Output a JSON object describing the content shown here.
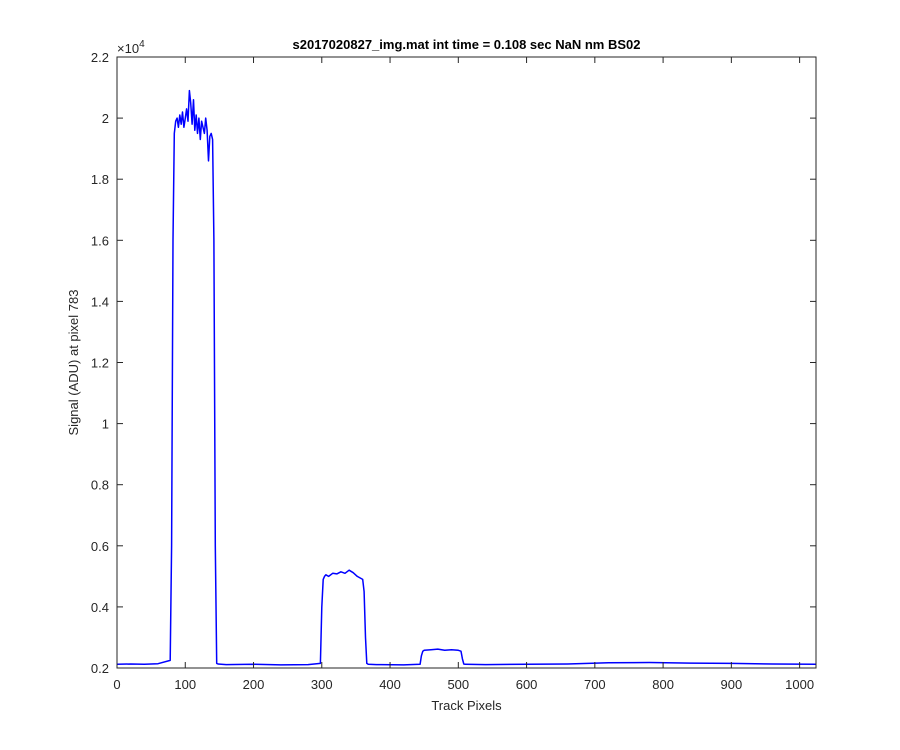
{
  "chart_data": {
    "type": "line",
    "title": "s2017020827_img.mat int time = 0.108 sec  NaN nm BS02",
    "xlabel": "Track Pixels",
    "ylabel": "Signal (ADU) at pixel 783",
    "exponent_label": "×10",
    "exponent_power": "4",
    "xlim": [
      0,
      1024
    ],
    "ylim": [
      0.2,
      2.2
    ],
    "y_scale_factor": 10000,
    "x_ticks": [
      0,
      100,
      200,
      300,
      400,
      500,
      600,
      700,
      800,
      900,
      1000
    ],
    "x_tick_labels": [
      "0",
      "100",
      "200",
      "300",
      "400",
      "500",
      "600",
      "700",
      "800",
      "900",
      "1000"
    ],
    "y_ticks": [
      0.2,
      0.4,
      0.6,
      0.8,
      1.0,
      1.2,
      1.4,
      1.6,
      1.8,
      2.0,
      2.2
    ],
    "y_tick_labels": [
      "0.2",
      "0.4",
      "0.6",
      "0.8",
      "1",
      "1.2",
      "1.4",
      "1.6",
      "1.8",
      "2",
      "2.2"
    ],
    "grid": false,
    "series_color": "#0000ff",
    "series": [
      {
        "x": [
          0,
          20,
          40,
          60,
          78,
          80,
          82,
          84,
          86,
          88,
          90,
          92,
          94,
          96,
          98,
          100,
          102,
          104,
          106,
          108,
          110,
          112,
          114,
          116,
          118,
          120,
          122,
          124,
          126,
          128,
          130,
          132,
          134,
          136,
          138,
          140,
          142,
          144,
          146,
          148,
          160,
          200,
          240,
          280,
          298,
          300,
          302,
          304,
          306,
          310,
          316,
          322,
          328,
          334,
          340,
          346,
          352,
          356,
          360,
          362,
          364,
          366,
          368,
          380,
          420,
          444,
          446,
          448,
          450,
          460,
          470,
          480,
          490,
          500,
          504,
          506,
          508,
          510,
          540,
          600,
          660,
          720,
          780,
          840,
          900,
          960,
          1024
        ],
        "y": [
          0.212,
          0.213,
          0.212,
          0.214,
          0.225,
          0.6,
          1.6,
          1.95,
          1.99,
          2.0,
          1.97,
          2.01,
          1.98,
          2.02,
          1.97,
          2.0,
          2.03,
          1.99,
          2.09,
          2.05,
          1.98,
          2.06,
          1.96,
          2.01,
          1.95,
          2.0,
          1.93,
          1.99,
          1.97,
          1.95,
          2.0,
          1.96,
          1.86,
          1.94,
          1.95,
          1.93,
          1.6,
          0.6,
          0.215,
          0.213,
          0.211,
          0.212,
          0.21,
          0.211,
          0.215,
          0.4,
          0.49,
          0.5,
          0.505,
          0.5,
          0.51,
          0.508,
          0.515,
          0.51,
          0.52,
          0.512,
          0.5,
          0.495,
          0.49,
          0.45,
          0.3,
          0.215,
          0.212,
          0.211,
          0.21,
          0.212,
          0.24,
          0.255,
          0.258,
          0.26,
          0.262,
          0.258,
          0.26,
          0.258,
          0.255,
          0.23,
          0.213,
          0.212,
          0.211,
          0.212,
          0.213,
          0.217,
          0.218,
          0.216,
          0.215,
          0.213,
          0.212
        ]
      }
    ]
  }
}
